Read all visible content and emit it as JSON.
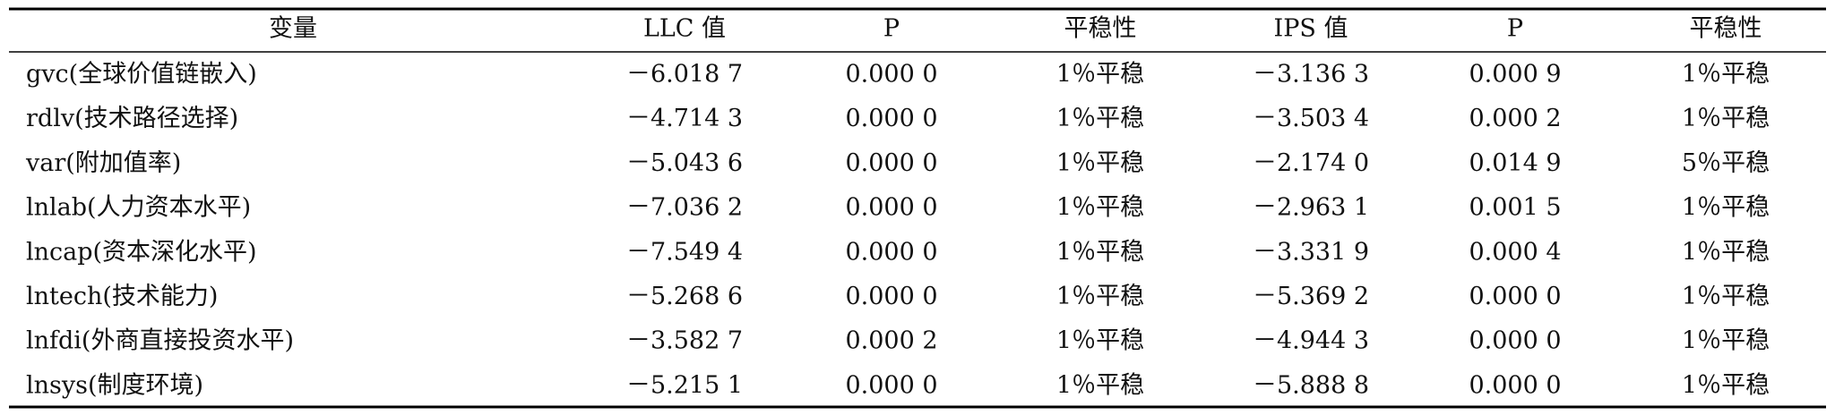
{
  "table": {
    "header": [
      "变量",
      "LLC 值",
      "P",
      "平稳性",
      "IPS 值",
      "P",
      "平稳性"
    ],
    "rows": [
      [
        "gvc(全球价值链嵌入)",
        "－6.018 7",
        "0.000 0",
        "1％平稳",
        "－3.136 3",
        "0.000 9",
        "1％平稳"
      ],
      [
        "rdlv(技术路径选择)",
        "－4.714 3",
        "0.000 0",
        "1％平稳",
        "－3.503 4",
        "0.000 2",
        "1％平稳"
      ],
      [
        "var(附加值率)",
        "－5.043 6",
        "0.000 0",
        "1％平稳",
        "－2.174 0",
        "0.014 9",
        "5％平稳"
      ],
      [
        "lnlab(人力资本水平)",
        "－7.036 2",
        "0.000 0",
        "1％平稳",
        "－2.963 1",
        "0.001 5",
        "1％平稳"
      ],
      [
        "lncap(资本深化水平)",
        "－7.549 4",
        "0.000 0",
        "1％平稳",
        "－3.331 9",
        "0.000 4",
        "1％平稳"
      ],
      [
        "lntech(技术能力)",
        "－5.268 6",
        "0.000 0",
        "1％平稳",
        "－5.369 2",
        "0.000 0",
        "1％平稳"
      ],
      [
        "lnfdi(外商直接投资水平)",
        "－3.582 7",
        "0.000 2",
        "1％平稳",
        "－4.944 3",
        "0.000 0",
        "1％平稳"
      ],
      [
        "lnsys(制度环境)",
        "－5.215 1",
        "0.000 0",
        "1％平稳",
        "－5.888 8",
        "0.000 0",
        "1％平稳"
      ]
    ]
  }
}
